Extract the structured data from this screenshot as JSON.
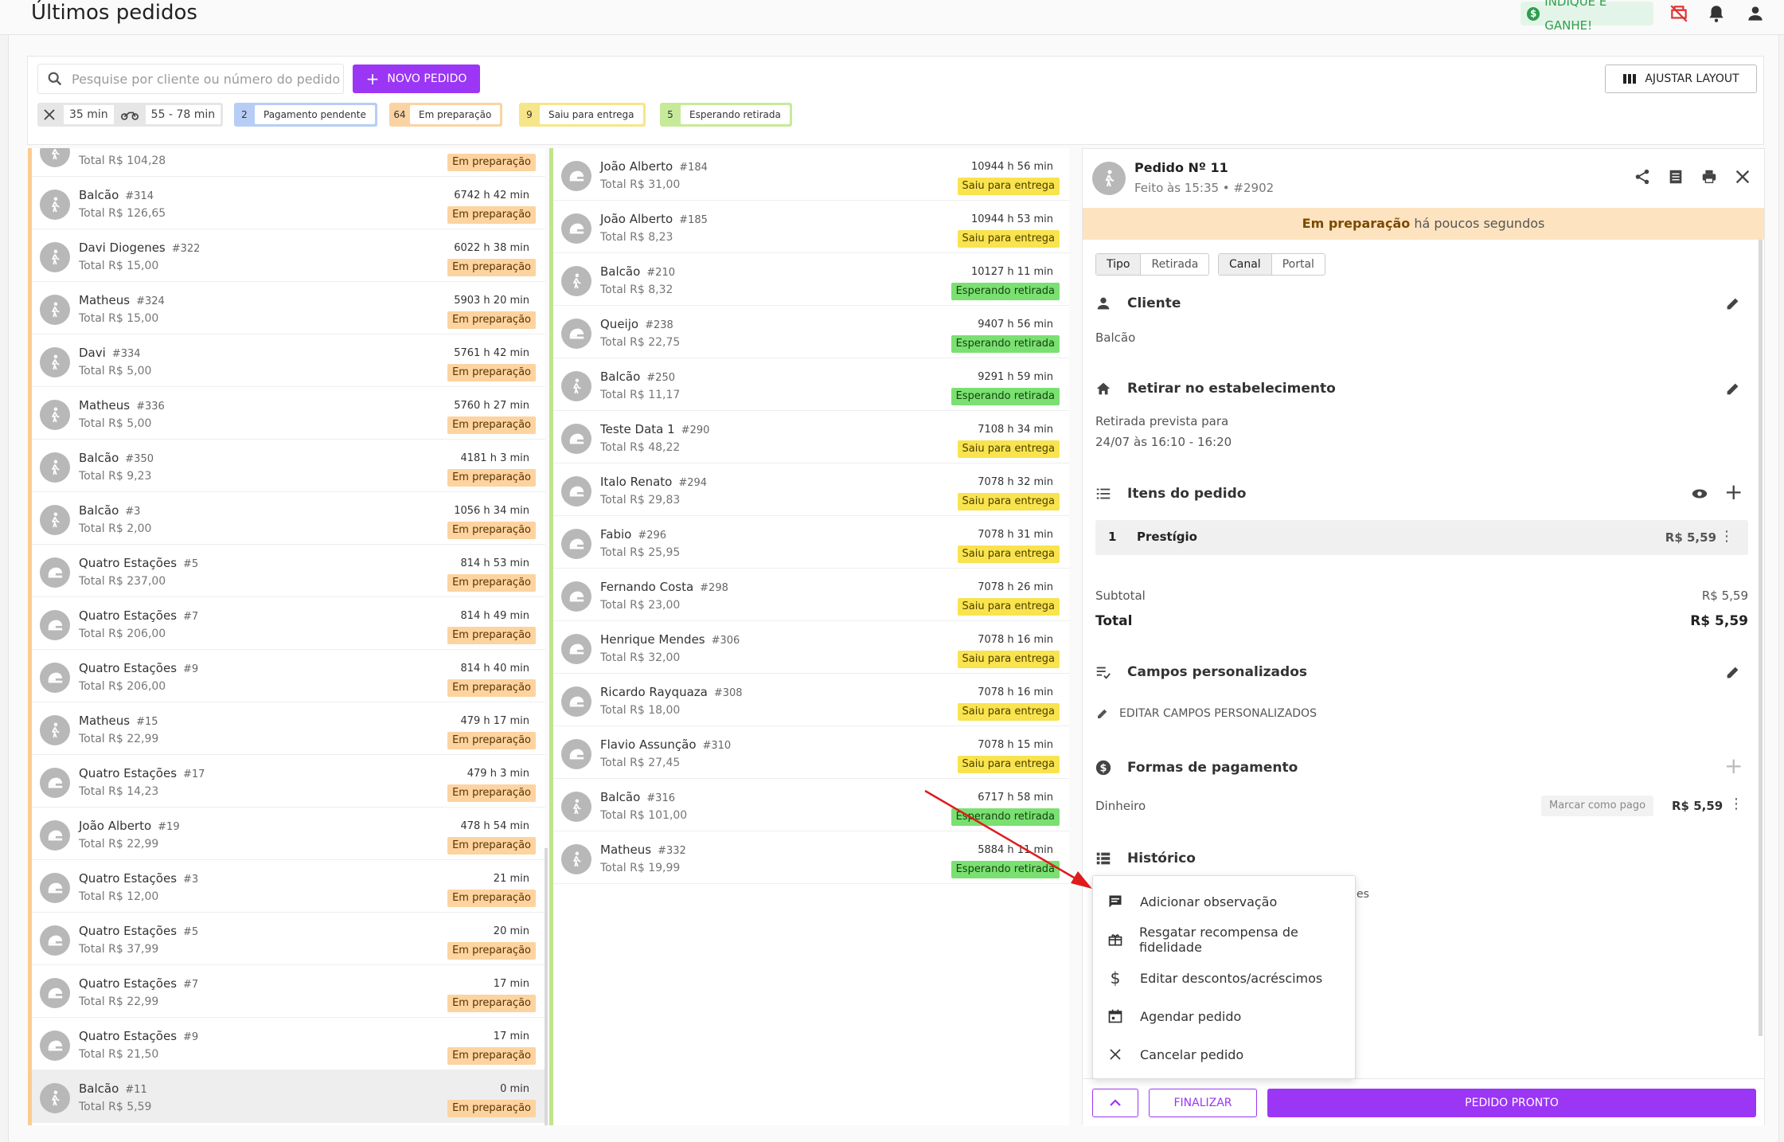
{
  "header": {
    "title": "Últimos pedidos",
    "indique_label": "INDIQUE E GANHE!"
  },
  "filters": {
    "search_placeholder": "Pesquise por cliente ou número do pedido",
    "new_order_label": "NOVO PEDIDO",
    "adjust_layout_label": "AJUSTAR LAYOUT",
    "prep_time": "35 min",
    "delivery_time": "55 - 78 min",
    "chips": [
      {
        "count": "2",
        "label": "Pagamento pendente",
        "color": "#b7cdf5"
      },
      {
        "count": "64",
        "label": "Em preparação",
        "color": "#fbd3a2"
      },
      {
        "count": "9",
        "label": "Saiu para entrega",
        "color": "#f7e58a"
      },
      {
        "count": "5",
        "label": "Esperando retirada",
        "color": "#c6ea9a"
      }
    ]
  },
  "columns": {
    "preparing": [
      {
        "name": "",
        "number": "",
        "total": "Total R$ 104,28",
        "time": "",
        "status": "Em preparação"
      },
      {
        "name": "Balcão",
        "number": "#314",
        "total": "Total R$ 126,65",
        "time": "6742 h 42 min",
        "status": "Em preparação"
      },
      {
        "name": "Davi Diogenes",
        "number": "#322",
        "total": "Total R$ 15,00",
        "time": "6022 h 38 min",
        "status": "Em preparação"
      },
      {
        "name": "Matheus",
        "number": "#324",
        "total": "Total R$ 15,00",
        "time": "5903 h 20 min",
        "status": "Em preparação"
      },
      {
        "name": "Davi",
        "number": "#334",
        "total": "Total R$ 5,00",
        "time": "5761 h 42 min",
        "status": "Em preparação"
      },
      {
        "name": "Matheus",
        "number": "#336",
        "total": "Total R$ 5,00",
        "time": "5760 h 27 min",
        "status": "Em preparação"
      },
      {
        "name": "Balcão",
        "number": "#350",
        "total": "Total R$ 9,23",
        "time": "4181 h 3 min",
        "status": "Em preparação"
      },
      {
        "name": "Balcão",
        "number": "#3",
        "total": "Total R$ 2,00",
        "time": "1056 h 34 min",
        "status": "Em preparação"
      },
      {
        "name": "Quatro Estações",
        "number": "#5",
        "total": "Total R$ 237,00",
        "time": "814 h 53 min",
        "status": "Em preparação"
      },
      {
        "name": "Quatro Estações",
        "number": "#7",
        "total": "Total R$ 206,00",
        "time": "814 h 49 min",
        "status": "Em preparação"
      },
      {
        "name": "Quatro Estações",
        "number": "#9",
        "total": "Total R$ 206,00",
        "time": "814 h 40 min",
        "status": "Em preparação"
      },
      {
        "name": "Matheus",
        "number": "#15",
        "total": "Total R$ 22,99",
        "time": "479 h 17 min",
        "status": "Em preparação"
      },
      {
        "name": "Quatro Estações",
        "number": "#17",
        "total": "Total R$ 14,23",
        "time": "479 h 3 min",
        "status": "Em preparação"
      },
      {
        "name": "João Alberto",
        "number": "#19",
        "total": "Total R$ 22,99",
        "time": "478 h 54 min",
        "status": "Em preparação"
      },
      {
        "name": "Quatro Estações",
        "number": "#3",
        "total": "Total R$ 12,00",
        "time": "21 min",
        "status": "Em preparação"
      },
      {
        "name": "Quatro Estações",
        "number": "#5",
        "total": "Total R$ 37,99",
        "time": "20 min",
        "status": "Em preparação"
      },
      {
        "name": "Quatro Estações",
        "number": "#7",
        "total": "Total R$ 22,99",
        "time": "17 min",
        "status": "Em preparação"
      },
      {
        "name": "Quatro Estações",
        "number": "#9",
        "total": "Total R$ 21,50",
        "time": "17 min",
        "status": "Em preparação"
      },
      {
        "name": "Balcão",
        "number": "#11",
        "total": "Total R$ 5,59",
        "time": "0 min",
        "status": "Em preparação"
      }
    ],
    "delivery": [
      {
        "name": "João Alberto",
        "number": "#184",
        "total": "Total R$ 31,00",
        "time": "10944 h 56 min",
        "status": "Saiu para entrega"
      },
      {
        "name": "João Alberto",
        "number": "#185",
        "total": "Total R$ 8,23",
        "time": "10944 h 53 min",
        "status": "Saiu para entrega"
      },
      {
        "name": "Balcão",
        "number": "#210",
        "total": "Total R$ 8,32",
        "time": "10127 h 11 min",
        "status": "Esperando retirada"
      },
      {
        "name": "Queijo",
        "number": "#238",
        "total": "Total R$ 22,75",
        "time": "9407 h 56 min",
        "status": "Esperando retirada"
      },
      {
        "name": "Balcão",
        "number": "#250",
        "total": "Total R$ 11,17",
        "time": "9291 h 59 min",
        "status": "Esperando retirada"
      },
      {
        "name": "Teste Data 1",
        "number": "#290",
        "total": "Total R$ 48,22",
        "time": "7108 h 34 min",
        "status": "Saiu para entrega"
      },
      {
        "name": "Italo Renato",
        "number": "#294",
        "total": "Total R$ 29,83",
        "time": "7078 h 32 min",
        "status": "Saiu para entrega"
      },
      {
        "name": "Fabio",
        "number": "#296",
        "total": "Total R$ 25,95",
        "time": "7078 h 31 min",
        "status": "Saiu para entrega"
      },
      {
        "name": "Fernando Costa",
        "number": "#298",
        "total": "Total R$ 23,00",
        "time": "7078 h 26 min",
        "status": "Saiu para entrega"
      },
      {
        "name": "Henrique Mendes",
        "number": "#306",
        "total": "Total R$ 32,00",
        "time": "7078 h 16 min",
        "status": "Saiu para entrega"
      },
      {
        "name": "Ricardo Rayquaza",
        "number": "#308",
        "total": "Total R$ 18,00",
        "time": "7078 h 16 min",
        "status": "Saiu para entrega"
      },
      {
        "name": "Flavio Assunção",
        "number": "#310",
        "total": "Total R$ 27,45",
        "time": "7078 h 15 min",
        "status": "Saiu para entrega"
      },
      {
        "name": "Balcão",
        "number": "#316",
        "total": "Total R$ 101,00",
        "time": "6717 h 58 min",
        "status": "Esperando retirada"
      },
      {
        "name": "Matheus",
        "number": "#332",
        "total": "Total R$ 19,99",
        "time": "5884 h 11 min",
        "status": "Esperando retirada"
      }
    ]
  },
  "detail": {
    "title": "Pedido Nº 11",
    "subtitle": "Feito às 15:35 •  #2902",
    "banner_status": "Em preparação",
    "banner_rest": " há poucos segundos",
    "tipo_label": "Tipo",
    "tipo_value": "Retirada",
    "canal_label": "Canal",
    "canal_value": "Portal",
    "cliente_title": "Cliente",
    "cliente_value": "Balcão",
    "retirar_title": "Retirar no estabelecimento",
    "retirada_line1": "Retirada prevista para",
    "retirada_line2": "24/07 às 16:10 - 16:20",
    "itens_title": "Itens do pedido",
    "item": {
      "qty": "1",
      "name": "Prestígio",
      "price": "R$ 5,59"
    },
    "subtotal_label": "Subtotal",
    "subtotal_value": "R$ 5,59",
    "total_label": "Total",
    "total_value": "R$ 5,59",
    "campos_title": "Campos personalizados",
    "campos_edit": "EDITAR CAMPOS PERSONALIZADOS",
    "pagamento_title": "Formas de pagamento",
    "pagamento_method": "Dinheiro",
    "marcar_pago": "Marcar como pago",
    "pagamento_value": "R$ 5,59",
    "historico_title": "Histórico",
    "historico_partial": "es",
    "btn_finalizar": "FINALIZAR",
    "btn_pronto": "PEDIDO PRONTO"
  },
  "menu": [
    {
      "icon": "comment-icon",
      "label": "Adicionar observação"
    },
    {
      "icon": "gift-icon",
      "label": "Resgatar recompensa de fidelidade"
    },
    {
      "icon": "dollar-icon",
      "label": "Editar descontos/acréscimos"
    },
    {
      "icon": "calendar-icon",
      "label": "Agendar pedido"
    },
    {
      "icon": "close-icon",
      "label": "Cancelar pedido"
    }
  ],
  "colors": {
    "accent": "#9b36f5",
    "prep": "#fdd3a0",
    "saiu": "#f9e34e",
    "esperando": "#7ae071"
  }
}
